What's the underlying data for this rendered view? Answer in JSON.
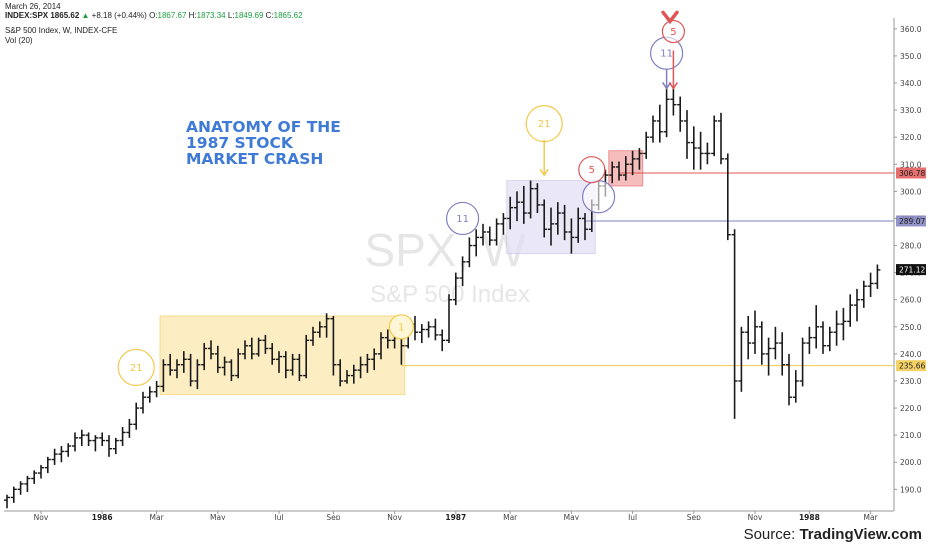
{
  "header": {
    "date": "March 26, 2014",
    "symbol": "INDEX:SPX",
    "last": "1865.62",
    "change_arrow": "▲",
    "change": "+8.18 (+0.44%)",
    "o_label": "O:",
    "o": "1867.67",
    "h_label": "H:",
    "h": "1873.34",
    "l_label": "L:",
    "l": "1849.69",
    "c_label": "C:",
    "c": "1865.62",
    "instrument": "S&P 500 Index, W, INDEX-CFE",
    "volume": "Vol (20)"
  },
  "watermark": {
    "symbol": "SPX, W",
    "name": "S&P 500 Index"
  },
  "annotation_title": "ANATOMY OF THE\n1987 STOCK\nMARKET CRASH",
  "source": {
    "label": "Source: ",
    "site": "TradingView.com"
  },
  "colors": {
    "bars": "#1a1a1a",
    "yellow": "#f2c94c",
    "zone_yellow": "#fbe7b0",
    "purple": "#8080c0",
    "zone_purple": "#e3e0f3",
    "red": "#e05555",
    "zone_red": "#f3a7a7",
    "title_blue": "#3f7ad6"
  },
  "chart_data": {
    "type": "ohlc",
    "timeframe": "W",
    "ylim": [
      182,
      364
    ],
    "yticks": [
      190,
      200,
      210,
      220,
      230,
      240,
      250,
      260,
      270,
      280,
      290,
      300,
      310,
      320,
      330,
      340,
      350,
      360
    ],
    "x_ticks": [
      {
        "label": "Nov",
        "week": 5,
        "bold": false
      },
      {
        "label": "1986",
        "week": 14,
        "bold": true
      },
      {
        "label": "Mar",
        "week": 22,
        "bold": false
      },
      {
        "label": "May",
        "week": 31,
        "bold": false
      },
      {
        "label": "Jul",
        "week": 40,
        "bold": false
      },
      {
        "label": "Sep",
        "week": 48,
        "bold": false
      },
      {
        "label": "Nov",
        "week": 57,
        "bold": false
      },
      {
        "label": "1987",
        "week": 66,
        "bold": true
      },
      {
        "label": "Mar",
        "week": 74,
        "bold": false
      },
      {
        "label": "May",
        "week": 83,
        "bold": false
      },
      {
        "label": "Jul",
        "week": 92,
        "bold": false
      },
      {
        "label": "Sep",
        "week": 101,
        "bold": false
      },
      {
        "label": "Nov",
        "week": 110,
        "bold": false
      },
      {
        "label": "1988",
        "week": 118,
        "bold": true
      },
      {
        "label": "Mar",
        "week": 127,
        "bold": false
      }
    ],
    "price_labels": [
      {
        "value": 306.78,
        "text": "306.78",
        "color": "#e05555"
      },
      {
        "value": 289.07,
        "text": "289.07",
        "color": "#8080c0"
      },
      {
        "value": 271.12,
        "text": "271.12",
        "color": "#111111"
      },
      {
        "value": 235.66,
        "text": "235.66",
        "color": "#f2c94c"
      }
    ],
    "levels": [
      {
        "value": 306.78,
        "from_week": 90,
        "color": "#e05555"
      },
      {
        "value": 289.07,
        "from_week": 85,
        "color": "#8080c0"
      },
      {
        "value": 235.66,
        "from_week": 58,
        "color": "#f2c94c"
      }
    ],
    "zones": [
      {
        "x0": 22.5,
        "x1": 58.5,
        "y0": 225,
        "y1": 254,
        "color": "#fbe7b0",
        "stroke": "#f2c94c"
      },
      {
        "x0": 73.5,
        "x1": 86.5,
        "y0": 277,
        "y1": 304,
        "color": "#e3e0f3",
        "stroke": "#c4c0e3"
      },
      {
        "x0": 88.5,
        "x1": 93.5,
        "y0": 302,
        "y1": 315,
        "color": "#f3a7a7",
        "stroke": "#e05555"
      }
    ],
    "circles": [
      {
        "label": "21",
        "week": 19,
        "value": 235,
        "r": 18,
        "color": "#f2c94c"
      },
      {
        "label": "1",
        "week": 58,
        "value": 250,
        "r": 12,
        "color": "#f2c94c"
      },
      {
        "label": "21",
        "week": 79,
        "value": 325,
        "r": 18,
        "color": "#f2c94c"
      },
      {
        "label": "11",
        "week": 67,
        "value": 290,
        "r": 16,
        "color": "#8080c0"
      },
      {
        "label": "",
        "week": 87,
        "value": 298,
        "r": 16,
        "color": "#8080c0"
      },
      {
        "label": "5",
        "week": 86,
        "value": 308,
        "r": 13,
        "color": "#e05555"
      },
      {
        "label": "11",
        "week": 97,
        "value": 351,
        "r": 16,
        "color": "#8080c0"
      },
      {
        "label": "5",
        "week": 98,
        "value": 359,
        "r": 11,
        "color": "#e05555"
      }
    ],
    "arrows": [
      {
        "week": 79,
        "from": 319,
        "to": 306,
        "color": "#f2c94c"
      },
      {
        "week": 97,
        "from": 345,
        "to": 338,
        "color": "#8080c0"
      },
      {
        "week": 98,
        "from": 352,
        "to": 338,
        "color": "#e05555"
      }
    ],
    "peak_marker": {
      "week": 97.5,
      "value": 363.5,
      "color": "#e05555"
    },
    "bars": [
      {
        "o": 186,
        "h": 188,
        "l": 183,
        "c": 187
      },
      {
        "o": 187,
        "h": 191,
        "l": 185,
        "c": 190
      },
      {
        "o": 190,
        "h": 193,
        "l": 188,
        "c": 192
      },
      {
        "o": 192,
        "h": 195,
        "l": 189,
        "c": 194
      },
      {
        "o": 194,
        "h": 197,
        "l": 192,
        "c": 196
      },
      {
        "o": 196,
        "h": 199,
        "l": 194,
        "c": 198
      },
      {
        "o": 198,
        "h": 202,
        "l": 196,
        "c": 201
      },
      {
        "o": 201,
        "h": 205,
        "l": 199,
        "c": 203
      },
      {
        "o": 203,
        "h": 206,
        "l": 200,
        "c": 204
      },
      {
        "o": 204,
        "h": 207,
        "l": 202,
        "c": 206
      },
      {
        "o": 206,
        "h": 211,
        "l": 204,
        "c": 209
      },
      {
        "o": 209,
        "h": 212,
        "l": 206,
        "c": 210
      },
      {
        "o": 210,
        "h": 211,
        "l": 206,
        "c": 208
      },
      {
        "o": 208,
        "h": 210,
        "l": 204,
        "c": 209
      },
      {
        "o": 209,
        "h": 211,
        "l": 206,
        "c": 208
      },
      {
        "o": 208,
        "h": 210,
        "l": 202,
        "c": 205
      },
      {
        "o": 205,
        "h": 209,
        "l": 203,
        "c": 208
      },
      {
        "o": 208,
        "h": 213,
        "l": 206,
        "c": 211
      },
      {
        "o": 211,
        "h": 216,
        "l": 209,
        "c": 214
      },
      {
        "o": 214,
        "h": 222,
        "l": 212,
        "c": 220
      },
      {
        "o": 220,
        "h": 226,
        "l": 218,
        "c": 224
      },
      {
        "o": 224,
        "h": 228,
        "l": 222,
        "c": 226
      },
      {
        "o": 226,
        "h": 230,
        "l": 224,
        "c": 228
      },
      {
        "o": 228,
        "h": 238,
        "l": 226,
        "c": 236
      },
      {
        "o": 236,
        "h": 240,
        "l": 232,
        "c": 234
      },
      {
        "o": 234,
        "h": 238,
        "l": 231,
        "c": 236
      },
      {
        "o": 236,
        "h": 241,
        "l": 233,
        "c": 238
      },
      {
        "o": 238,
        "h": 240,
        "l": 228,
        "c": 230
      },
      {
        "o": 230,
        "h": 238,
        "l": 227,
        "c": 236
      },
      {
        "o": 236,
        "h": 244,
        "l": 234,
        "c": 242
      },
      {
        "o": 242,
        "h": 245,
        "l": 238,
        "c": 240
      },
      {
        "o": 240,
        "h": 243,
        "l": 233,
        "c": 235
      },
      {
        "o": 235,
        "h": 239,
        "l": 232,
        "c": 237
      },
      {
        "o": 237,
        "h": 238,
        "l": 230,
        "c": 232
      },
      {
        "o": 232,
        "h": 242,
        "l": 231,
        "c": 240
      },
      {
        "o": 240,
        "h": 245,
        "l": 238,
        "c": 243
      },
      {
        "o": 243,
        "h": 246,
        "l": 238,
        "c": 240
      },
      {
        "o": 240,
        "h": 246,
        "l": 239,
        "c": 245
      },
      {
        "o": 245,
        "h": 247,
        "l": 240,
        "c": 242
      },
      {
        "o": 242,
        "h": 244,
        "l": 236,
        "c": 238
      },
      {
        "o": 238,
        "h": 241,
        "l": 233,
        "c": 239
      },
      {
        "o": 239,
        "h": 241,
        "l": 231,
        "c": 234
      },
      {
        "o": 234,
        "h": 240,
        "l": 232,
        "c": 238
      },
      {
        "o": 238,
        "h": 240,
        "l": 230,
        "c": 232
      },
      {
        "o": 232,
        "h": 247,
        "l": 231,
        "c": 245
      },
      {
        "o": 245,
        "h": 250,
        "l": 243,
        "c": 248
      },
      {
        "o": 248,
        "h": 252,
        "l": 246,
        "c": 250
      },
      {
        "o": 250,
        "h": 255,
        "l": 246,
        "c": 253
      },
      {
        "o": 253,
        "h": 254,
        "l": 232,
        "c": 236
      },
      {
        "o": 236,
        "h": 238,
        "l": 228,
        "c": 230
      },
      {
        "o": 230,
        "h": 234,
        "l": 229,
        "c": 232
      },
      {
        "o": 232,
        "h": 236,
        "l": 229,
        "c": 234
      },
      {
        "o": 234,
        "h": 239,
        "l": 231,
        "c": 236
      },
      {
        "o": 236,
        "h": 240,
        "l": 233,
        "c": 238
      },
      {
        "o": 238,
        "h": 242,
        "l": 234,
        "c": 240
      },
      {
        "o": 240,
        "h": 248,
        "l": 238,
        "c": 246
      },
      {
        "o": 246,
        "h": 249,
        "l": 242,
        "c": 245
      },
      {
        "o": 245,
        "h": 248,
        "l": 242,
        "c": 246
      },
      {
        "o": 246,
        "h": 247,
        "l": 236,
        "c": 243
      },
      {
        "o": 243,
        "h": 253,
        "l": 242,
        "c": 251
      },
      {
        "o": 251,
        "h": 254,
        "l": 245,
        "c": 248
      },
      {
        "o": 248,
        "h": 251,
        "l": 244,
        "c": 249
      },
      {
        "o": 249,
        "h": 252,
        "l": 246,
        "c": 250
      },
      {
        "o": 250,
        "h": 253,
        "l": 245,
        "c": 247
      },
      {
        "o": 247,
        "h": 249,
        "l": 241,
        "c": 245
      },
      {
        "o": 245,
        "h": 262,
        "l": 244,
        "c": 260
      },
      {
        "o": 260,
        "h": 270,
        "l": 258,
        "c": 268
      },
      {
        "o": 268,
        "h": 276,
        "l": 265,
        "c": 274
      },
      {
        "o": 274,
        "h": 283,
        "l": 272,
        "c": 280
      },
      {
        "o": 280,
        "h": 286,
        "l": 276,
        "c": 283
      },
      {
        "o": 283,
        "h": 288,
        "l": 280,
        "c": 285
      },
      {
        "o": 285,
        "h": 287,
        "l": 280,
        "c": 282
      },
      {
        "o": 282,
        "h": 290,
        "l": 280,
        "c": 288
      },
      {
        "o": 288,
        "h": 292,
        "l": 284,
        "c": 290
      },
      {
        "o": 290,
        "h": 298,
        "l": 286,
        "c": 294
      },
      {
        "o": 294,
        "h": 300,
        "l": 289,
        "c": 296
      },
      {
        "o": 296,
        "h": 302,
        "l": 288,
        "c": 292
      },
      {
        "o": 292,
        "h": 304,
        "l": 290,
        "c": 301
      },
      {
        "o": 301,
        "h": 303,
        "l": 292,
        "c": 295
      },
      {
        "o": 295,
        "h": 297,
        "l": 283,
        "c": 286
      },
      {
        "o": 286,
        "h": 294,
        "l": 280,
        "c": 288
      },
      {
        "o": 288,
        "h": 296,
        "l": 284,
        "c": 292
      },
      {
        "o": 292,
        "h": 295,
        "l": 282,
        "c": 285
      },
      {
        "o": 285,
        "h": 290,
        "l": 277,
        "c": 283
      },
      {
        "o": 283,
        "h": 294,
        "l": 281,
        "c": 290
      },
      {
        "o": 290,
        "h": 292,
        "l": 282,
        "c": 286
      },
      {
        "o": 286,
        "h": 297,
        "l": 285,
        "c": 295
      },
      {
        "o": 295,
        "h": 304,
        "l": 293,
        "c": 302
      },
      {
        "o": 302,
        "h": 308,
        "l": 298,
        "c": 306
      },
      {
        "o": 306,
        "h": 311,
        "l": 303,
        "c": 309
      },
      {
        "o": 309,
        "h": 311,
        "l": 304,
        "c": 306
      },
      {
        "o": 306,
        "h": 313,
        "l": 304,
        "c": 310
      },
      {
        "o": 310,
        "h": 315,
        "l": 306,
        "c": 312
      },
      {
        "o": 312,
        "h": 316,
        "l": 308,
        "c": 314
      },
      {
        "o": 314,
        "h": 322,
        "l": 312,
        "c": 320
      },
      {
        "o": 320,
        "h": 328,
        "l": 318,
        "c": 326
      },
      {
        "o": 326,
        "h": 332,
        "l": 318,
        "c": 322
      },
      {
        "o": 322,
        "h": 338,
        "l": 320,
        "c": 334
      },
      {
        "o": 334,
        "h": 338,
        "l": 328,
        "c": 332
      },
      {
        "o": 332,
        "h": 335,
        "l": 322,
        "c": 326
      },
      {
        "o": 326,
        "h": 330,
        "l": 312,
        "c": 318
      },
      {
        "o": 318,
        "h": 324,
        "l": 308,
        "c": 316
      },
      {
        "o": 316,
        "h": 322,
        "l": 308,
        "c": 314
      },
      {
        "o": 314,
        "h": 318,
        "l": 310,
        "c": 314
      },
      {
        "o": 314,
        "h": 328,
        "l": 313,
        "c": 326
      },
      {
        "o": 326,
        "h": 329,
        "l": 310,
        "c": 312
      },
      {
        "o": 312,
        "h": 314,
        "l": 282,
        "c": 284
      },
      {
        "o": 284,
        "h": 286,
        "l": 216,
        "c": 230
      },
      {
        "o": 230,
        "h": 250,
        "l": 226,
        "c": 248
      },
      {
        "o": 248,
        "h": 254,
        "l": 238,
        "c": 244
      },
      {
        "o": 244,
        "h": 256,
        "l": 240,
        "c": 250
      },
      {
        "o": 250,
        "h": 252,
        "l": 236,
        "c": 240
      },
      {
        "o": 240,
        "h": 246,
        "l": 232,
        "c": 242
      },
      {
        "o": 242,
        "h": 250,
        "l": 238,
        "c": 244
      },
      {
        "o": 244,
        "h": 248,
        "l": 232,
        "c": 236
      },
      {
        "o": 236,
        "h": 240,
        "l": 221,
        "c": 224
      },
      {
        "o": 224,
        "h": 234,
        "l": 222,
        "c": 230
      },
      {
        "o": 230,
        "h": 246,
        "l": 228,
        "c": 244
      },
      {
        "o": 244,
        "h": 250,
        "l": 240,
        "c": 246
      },
      {
        "o": 246,
        "h": 258,
        "l": 242,
        "c": 250
      },
      {
        "o": 250,
        "h": 252,
        "l": 240,
        "c": 243
      },
      {
        "o": 243,
        "h": 250,
        "l": 241,
        "c": 248
      },
      {
        "o": 248,
        "h": 256,
        "l": 243,
        "c": 251
      },
      {
        "o": 251,
        "h": 257,
        "l": 245,
        "c": 252
      },
      {
        "o": 252,
        "h": 262,
        "l": 250,
        "c": 258
      },
      {
        "o": 258,
        "h": 264,
        "l": 252,
        "c": 260
      },
      {
        "o": 260,
        "h": 267,
        "l": 257,
        "c": 265
      },
      {
        "o": 265,
        "h": 270,
        "l": 261,
        "c": 266
      },
      {
        "o": 266,
        "h": 273,
        "l": 264,
        "c": 271
      }
    ]
  }
}
